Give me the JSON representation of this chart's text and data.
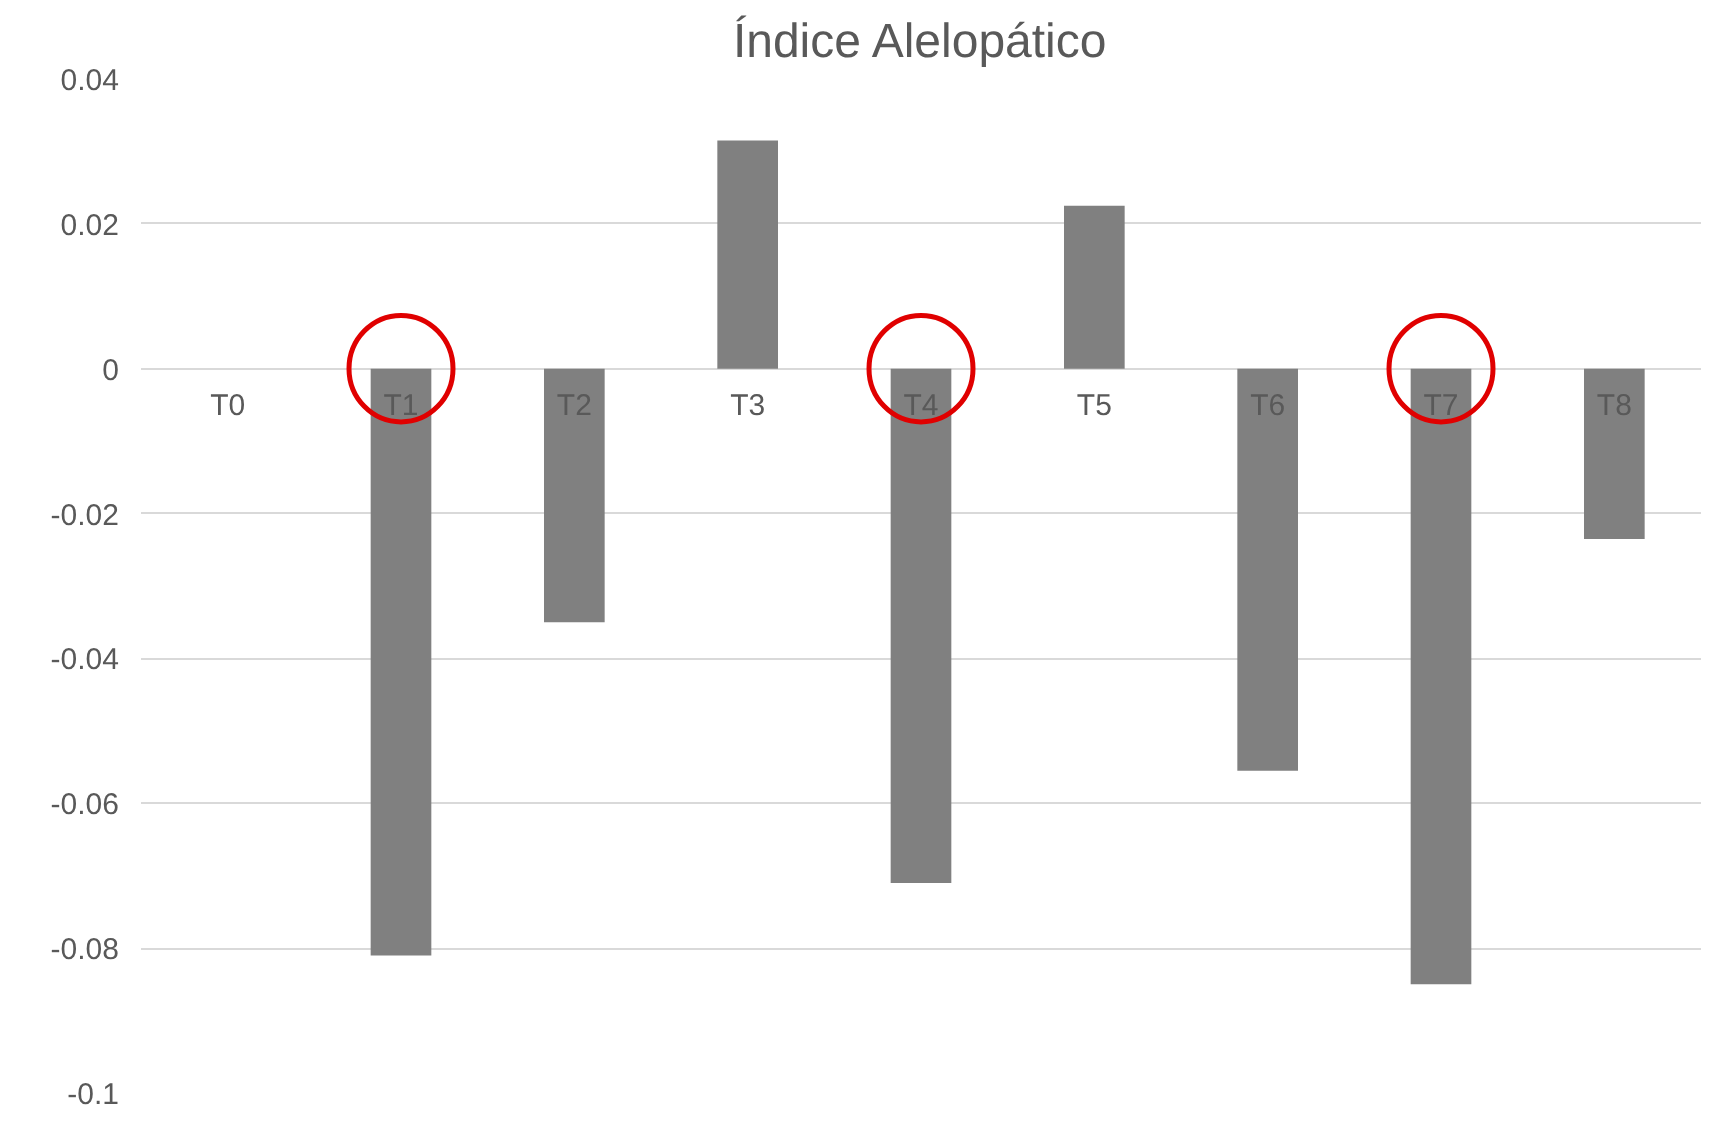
{
  "chart_data": {
    "type": "bar",
    "title": "Índice Alelopático",
    "categories": [
      "T0",
      "T1",
      "T2",
      "T3",
      "T4",
      "T5",
      "T6",
      "T7",
      "T8"
    ],
    "values": [
      0,
      -0.081,
      -0.035,
      0.0315,
      -0.071,
      0.0225,
      -0.0555,
      -0.085,
      -0.0235
    ],
    "color": "#808080",
    "ylim": [
      -0.1,
      0.04
    ],
    "yticks": [
      -0.1,
      -0.08,
      -0.06,
      -0.04,
      -0.02,
      0,
      0.02,
      0.04
    ],
    "grid": "y"
  }
}
